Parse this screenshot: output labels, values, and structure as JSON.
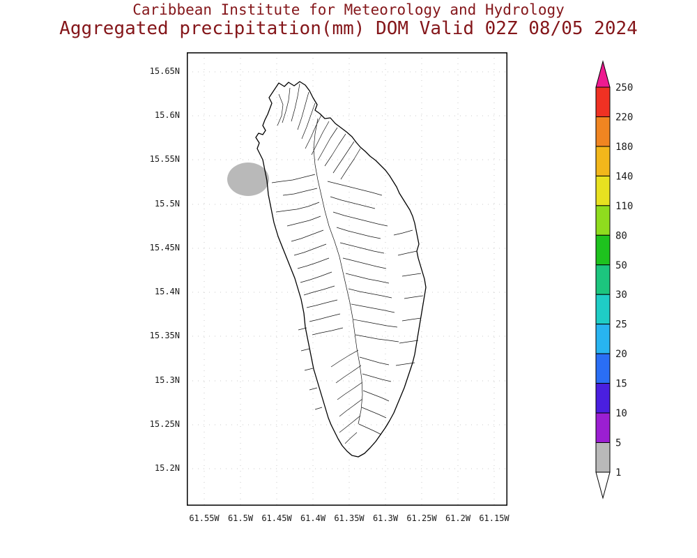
{
  "header": {
    "line1": "Caribbean Institute for Meteorology and Hydrology",
    "line2": "Aggregated precipitation(mm) DOM Valid 02Z 08/05 2024"
  },
  "plot": {
    "type": "shaded-contour-map",
    "variable": "Aggregated precipitation (mm)",
    "region_code": "DOM",
    "valid_time": "02Z 08/05 2024"
  },
  "colors": {
    "title_text": "#84161a",
    "axis_text": "#1a1a1a",
    "map_outline": "#000000",
    "grid": "#c9c9c9",
    "precip_blob": "#b9b9b9"
  },
  "map": {
    "region": "Dominica",
    "lat_ticks": [
      "15.65N",
      "15.6N",
      "15.55N",
      "15.5N",
      "15.45N",
      "15.4N",
      "15.35N",
      "15.3N",
      "15.25N",
      "15.2N"
    ],
    "lon_ticks": [
      "61.55W",
      "61.5W",
      "61.45W",
      "61.4W",
      "61.35W",
      "61.3W",
      "61.25W",
      "61.2W",
      "61.15W"
    ],
    "precip_features": [
      {
        "value_range_mm": "1-5",
        "color": "#b9b9b9",
        "location": "offshore northwest coast near 15.53N, 61.49W",
        "shape": "blob"
      }
    ]
  },
  "legend": {
    "units": "mm",
    "labels_top_to_bottom": [
      "250",
      "220",
      "180",
      "140",
      "110",
      "80",
      "50",
      "30",
      "25",
      "20",
      "15",
      "10",
      "5",
      "1"
    ],
    "colors_top_to_bottom": [
      "#ee1a90",
      "#ef3123",
      "#f08521",
      "#f2b71b",
      "#e8e120",
      "#8fdc1e",
      "#1ec21e",
      "#1cc57e",
      "#1fcdc6",
      "#28b4f0",
      "#2a6ef5",
      "#4a1fe0",
      "#9b1fd2",
      "#b9b9b9",
      "#ffffff"
    ],
    "segments_top_to_bottom": [
      {
        "range": "> 250",
        "color": "#ee1a90"
      },
      {
        "range": "220-250",
        "color": "#ef3123"
      },
      {
        "range": "180-220",
        "color": "#f08521"
      },
      {
        "range": "140-180",
        "color": "#f2b71b"
      },
      {
        "range": "110-140",
        "color": "#e8e120"
      },
      {
        "range": "80-110",
        "color": "#8fdc1e"
      },
      {
        "range": "50-80",
        "color": "#1ec21e"
      },
      {
        "range": "30-50",
        "color": "#1cc57e"
      },
      {
        "range": "25-30",
        "color": "#1fcdc6"
      },
      {
        "range": "20-25",
        "color": "#28b4f0"
      },
      {
        "range": "15-20",
        "color": "#2a6ef5"
      },
      {
        "range": "10-15",
        "color": "#4a1fe0"
      },
      {
        "range": "5-10",
        "color": "#9b1fd2"
      },
      {
        "range": "1-5",
        "color": "#b9b9b9"
      },
      {
        "range": "< 1",
        "color": "#ffffff"
      }
    ]
  }
}
